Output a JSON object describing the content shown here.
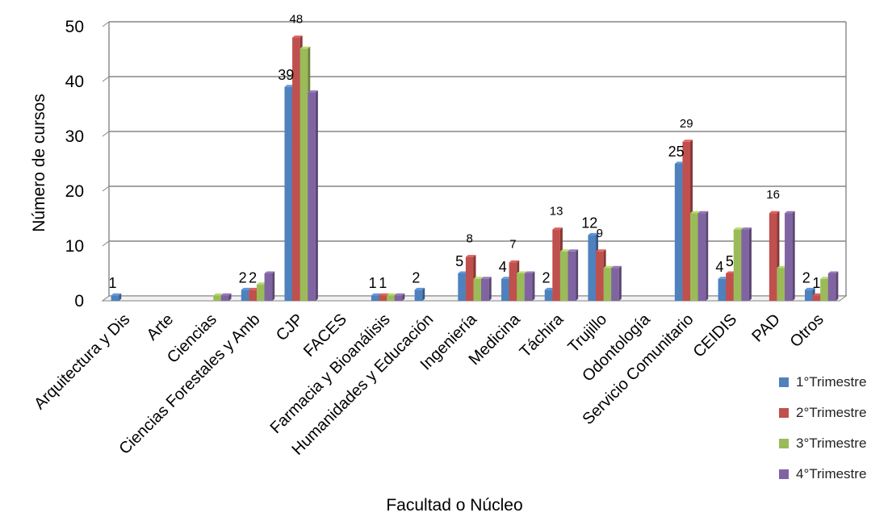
{
  "chart_data": {
    "type": "bar",
    "title": "",
    "xlabel": "Facultad o Núcleo",
    "ylabel": "Número de cursos",
    "ylim": [
      0,
      50
    ],
    "yticks": [
      0,
      10,
      20,
      30,
      40,
      50
    ],
    "grid": true,
    "legend_position": "right",
    "categories": [
      "Arquitectura y Dis",
      "Arte",
      "Ciencias",
      "Ciencias Forestales y Amb",
      "CJP",
      "FACES",
      "Farmacia y Bioanálisis",
      "Humanidades y Educación",
      "Ingeniería",
      "Medicina",
      "Táchira",
      "Trujillo",
      "Odontología",
      "Servicio Comunitario",
      "CEIDIS",
      "PAD",
      "Otros"
    ],
    "series": [
      {
        "name": "1°Trimestre",
        "color": "#4F81BD",
        "values": [
          1,
          0,
          0,
          2,
          39,
          0,
          1,
          2,
          5,
          4,
          2,
          12,
          0,
          25,
          4,
          0,
          2
        ]
      },
      {
        "name": "2°Trimestre",
        "color": "#C0504D",
        "values": [
          0,
          0,
          0,
          2,
          48,
          0,
          1,
          0,
          8,
          7,
          13,
          9,
          0,
          29,
          5,
          16,
          1
        ]
      },
      {
        "name": "3°Trimestre",
        "color": "#9BBB59",
        "values": [
          0,
          0,
          1,
          3,
          46,
          0,
          1,
          0,
          4,
          5,
          9,
          6,
          0,
          16,
          13,
          6,
          4
        ]
      },
      {
        "name": "4°Trimestre",
        "color": "#8064A2",
        "values": [
          0,
          0,
          1,
          5,
          38,
          0,
          1,
          0,
          4,
          5,
          9,
          6,
          0,
          16,
          13,
          16,
          5
        ]
      }
    ],
    "data_labels": [
      {
        "series": 0,
        "category": 0,
        "text": "1"
      },
      {
        "series": 0,
        "category": 3,
        "text": "2"
      },
      {
        "series": 1,
        "category": 3,
        "text": "2"
      },
      {
        "series": 0,
        "category": 4,
        "text": "39"
      },
      {
        "series": 1,
        "category": 4,
        "text": "48"
      },
      {
        "series": 0,
        "category": 6,
        "text": "1"
      },
      {
        "series": 1,
        "category": 6,
        "text": "1"
      },
      {
        "series": 0,
        "category": 7,
        "text": "2"
      },
      {
        "series": 0,
        "category": 8,
        "text": "5"
      },
      {
        "series": 1,
        "category": 8,
        "text": "8"
      },
      {
        "series": 0,
        "category": 9,
        "text": "4"
      },
      {
        "series": 1,
        "category": 9,
        "text": "7"
      },
      {
        "series": 0,
        "category": 10,
        "text": "2"
      },
      {
        "series": 1,
        "category": 10,
        "text": "13"
      },
      {
        "series": 0,
        "category": 11,
        "text": "12"
      },
      {
        "series": 1,
        "category": 11,
        "text": "9"
      },
      {
        "series": 0,
        "category": 13,
        "text": "25"
      },
      {
        "series": 1,
        "category": 13,
        "text": "29"
      },
      {
        "series": 0,
        "category": 14,
        "text": "4"
      },
      {
        "series": 1,
        "category": 14,
        "text": "5"
      },
      {
        "series": 1,
        "category": 15,
        "text": "16"
      },
      {
        "series": 0,
        "category": 16,
        "text": "2"
      },
      {
        "series": 1,
        "category": 16,
        "text": "1"
      }
    ]
  }
}
